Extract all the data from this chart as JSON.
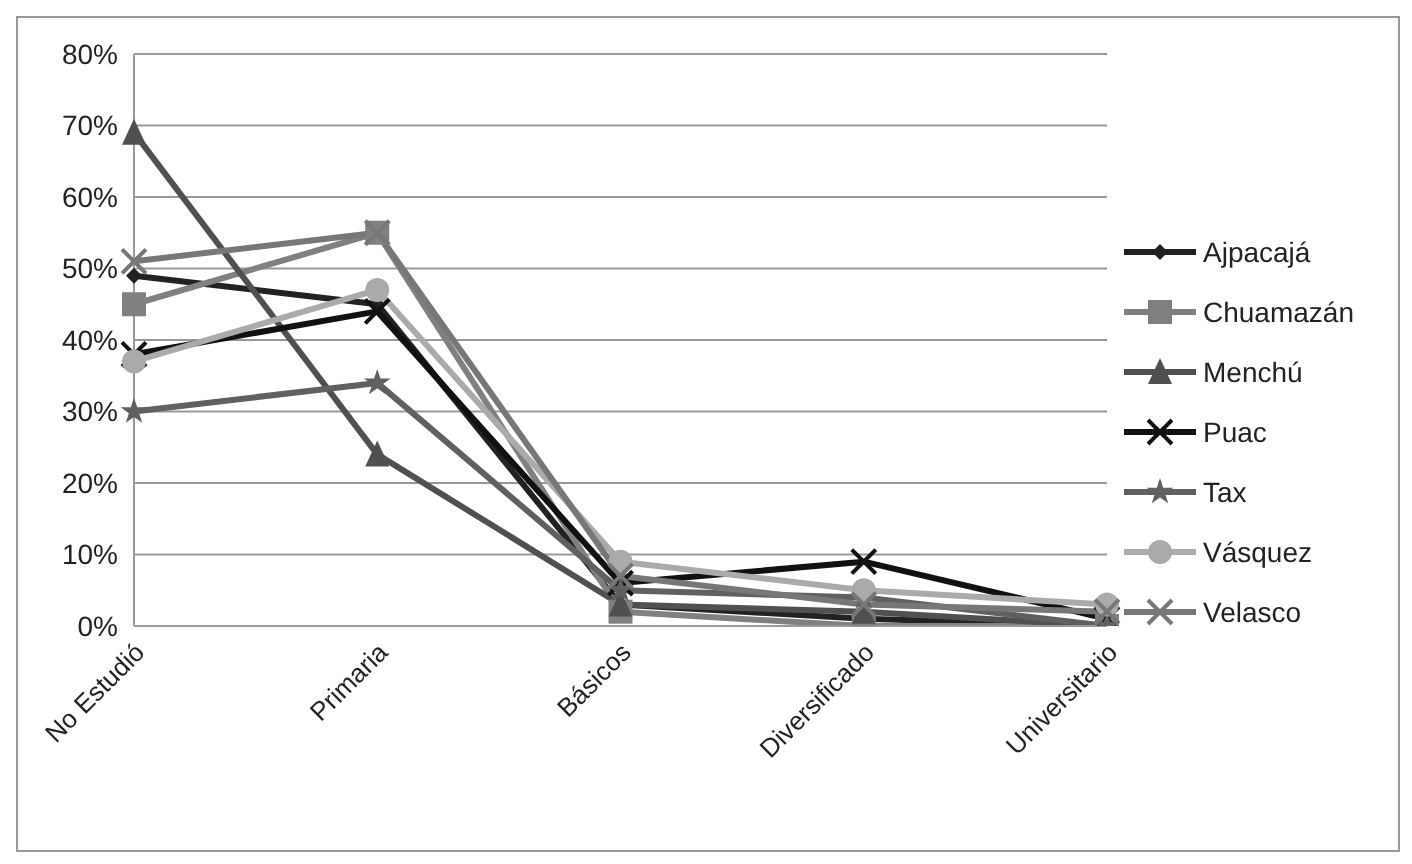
{
  "chart_data": {
    "type": "line",
    "categories": [
      "No Estudió",
      "Primaria",
      "Básicos",
      "Diversificado",
      "Universitario"
    ],
    "series": [
      {
        "name": "Ajpacajá",
        "color": "#222222",
        "marker": "diamond",
        "values": [
          49,
          45,
          3,
          1,
          0
        ]
      },
      {
        "name": "Chuamazán",
        "color": "#808080",
        "marker": "square",
        "values": [
          45,
          55,
          2,
          0,
          0
        ]
      },
      {
        "name": "Menchú",
        "color": "#505050",
        "marker": "triangle",
        "values": [
          69,
          24,
          3,
          2,
          0
        ]
      },
      {
        "name": "Puac",
        "color": "#111111",
        "marker": "cross",
        "values": [
          38,
          44,
          6,
          9,
          1
        ]
      },
      {
        "name": "Tax",
        "color": "#606060",
        "marker": "star",
        "values": [
          30,
          34,
          5,
          4,
          0
        ]
      },
      {
        "name": "Vásquez",
        "color": "#aaaaaa",
        "marker": "circle",
        "values": [
          37,
          47,
          9,
          5,
          3
        ]
      },
      {
        "name": "Velasco",
        "color": "#777777",
        "marker": "cross",
        "values": [
          51,
          55,
          7,
          3,
          2
        ]
      }
    ],
    "ylim": [
      0,
      80
    ],
    "yticks": [
      {
        "value": 0,
        "label": "0%"
      },
      {
        "value": 10,
        "label": "10%"
      },
      {
        "value": 20,
        "label": "20%"
      },
      {
        "value": 30,
        "label": "30%"
      },
      {
        "value": 40,
        "label": "40%"
      },
      {
        "value": 50,
        "label": "50%"
      },
      {
        "value": 60,
        "label": "60%"
      },
      {
        "value": 70,
        "label": "70%"
      },
      {
        "value": 80,
        "label": "80%"
      }
    ],
    "grid": "y",
    "legend": "right"
  }
}
